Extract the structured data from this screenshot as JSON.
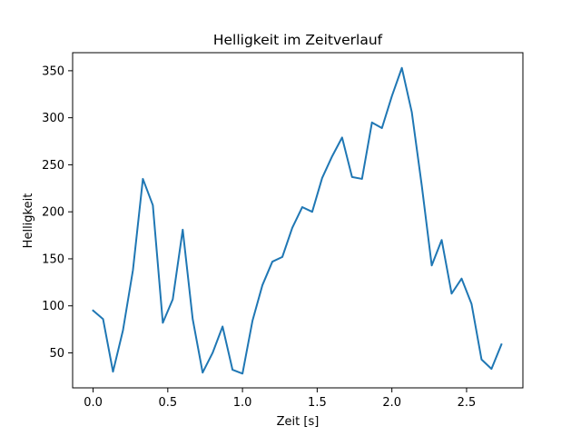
{
  "chart_data": {
    "type": "line",
    "title": "Helligkeit im Zeitverlauf",
    "xlabel": "Zeit [s]",
    "ylabel": "Helligkeit",
    "xlim": [
      -0.137,
      2.877
    ],
    "ylim": [
      12.8,
      369.2
    ],
    "xticks": [
      0.0,
      0.5,
      1.0,
      1.5,
      2.0,
      2.5
    ],
    "xtick_labels": [
      "0.0",
      "0.5",
      "1.0",
      "1.5",
      "2.0",
      "2.5"
    ],
    "yticks": [
      50,
      100,
      150,
      200,
      250,
      300,
      350
    ],
    "ytick_labels": [
      "50",
      "100",
      "150",
      "200",
      "250",
      "300",
      "350"
    ],
    "grid": false,
    "legend": false,
    "series": [
      {
        "color": "#1f77b4",
        "x": [
          0.0,
          0.0667,
          0.1333,
          0.2,
          0.2667,
          0.3333,
          0.4,
          0.4667,
          0.5333,
          0.6,
          0.6667,
          0.7333,
          0.8,
          0.8667,
          0.9333,
          1.0,
          1.0667,
          1.1333,
          1.2,
          1.2667,
          1.3333,
          1.4,
          1.4667,
          1.5333,
          1.6,
          1.6667,
          1.7333,
          1.8,
          1.8667,
          1.9333,
          2.0,
          2.0667,
          2.1333,
          2.2,
          2.2667,
          2.3333,
          2.4,
          2.4667,
          2.5333,
          2.6,
          2.6667,
          2.7333
        ],
        "y": [
          95,
          86,
          30,
          74,
          138,
          235,
          207,
          82,
          107,
          181,
          86,
          29,
          50,
          78,
          32,
          28,
          84,
          122,
          147,
          152,
          183,
          205,
          200,
          236,
          259,
          279,
          237,
          235,
          295,
          289,
          323,
          353,
          306,
          228,
          143,
          170,
          113,
          129,
          102,
          43,
          33,
          59
        ]
      }
    ]
  }
}
